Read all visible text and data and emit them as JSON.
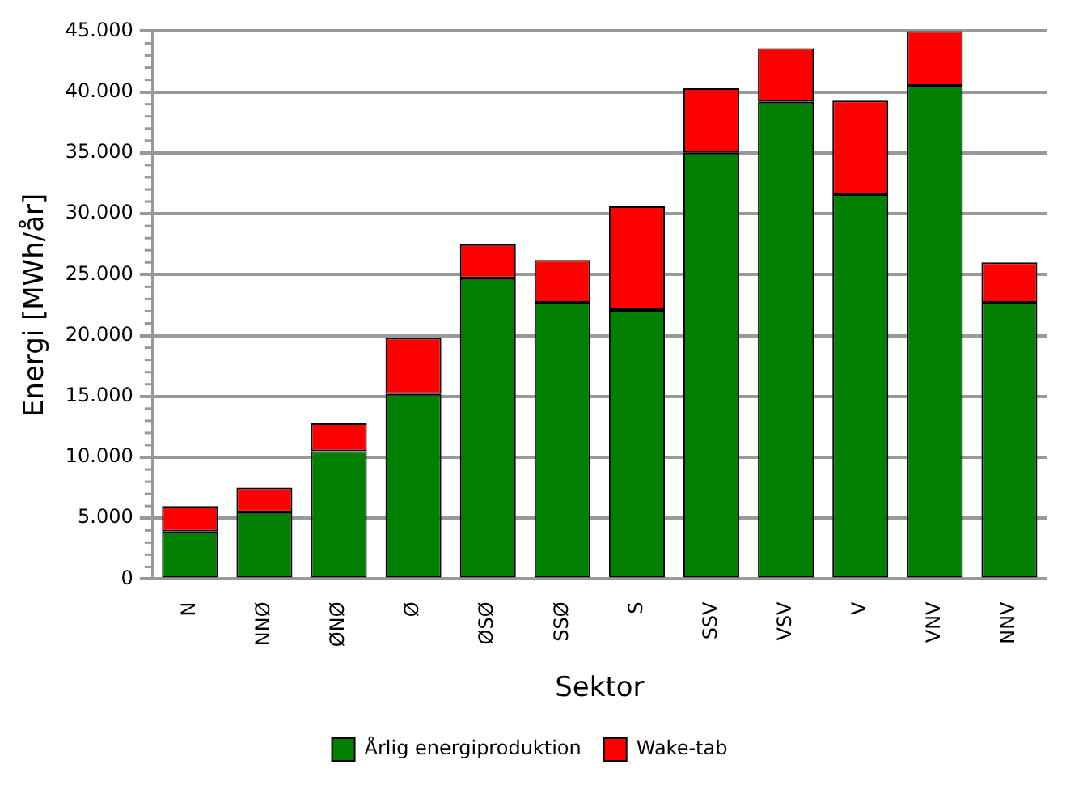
{
  "chart_data": {
    "type": "bar",
    "stacked": true,
    "xlabel": "Sektor",
    "ylabel": "Energi [MWh/år]",
    "categories": [
      "N",
      "NNØ",
      "ØNØ",
      "Ø",
      "ØSØ",
      "SSØ",
      "S",
      "SSV",
      "VSV",
      "V",
      "VNV",
      "NNV"
    ],
    "series": [
      {
        "name": "Årlig energiproduktion",
        "color": "#007f00",
        "values": [
          3900,
          5500,
          10500,
          15200,
          24700,
          22700,
          22100,
          35000,
          39200,
          31600,
          40500,
          22700
        ]
      },
      {
        "name": "Wake-tab",
        "color": "#ff0000",
        "values": [
          2100,
          2000,
          2300,
          4600,
          2800,
          3500,
          8500,
          5300,
          4400,
          7700,
          4500,
          3300
        ]
      }
    ],
    "ylim": [
      0,
      45000
    ],
    "yticks": [
      {
        "value": 0,
        "label": "0"
      },
      {
        "value": 1000,
        "label": null
      },
      {
        "value": 2000,
        "label": null
      },
      {
        "value": 3000,
        "label": null
      },
      {
        "value": 4000,
        "label": null
      },
      {
        "value": 5000,
        "label": "5.000"
      },
      {
        "value": 6000,
        "label": null
      },
      {
        "value": 7000,
        "label": null
      },
      {
        "value": 8000,
        "label": null
      },
      {
        "value": 9000,
        "label": null
      },
      {
        "value": 10000,
        "label": "10.000"
      },
      {
        "value": 11000,
        "label": null
      },
      {
        "value": 12000,
        "label": null
      },
      {
        "value": 13000,
        "label": null
      },
      {
        "value": 14000,
        "label": null
      },
      {
        "value": 15000,
        "label": "15.000"
      },
      {
        "value": 16000,
        "label": null
      },
      {
        "value": 17000,
        "label": null
      },
      {
        "value": 18000,
        "label": null
      },
      {
        "value": 19000,
        "label": null
      },
      {
        "value": 20000,
        "label": "20.000"
      },
      {
        "value": 21000,
        "label": null
      },
      {
        "value": 22000,
        "label": null
      },
      {
        "value": 23000,
        "label": null
      },
      {
        "value": 24000,
        "label": null
      },
      {
        "value": 25000,
        "label": "25.000"
      },
      {
        "value": 26000,
        "label": null
      },
      {
        "value": 27000,
        "label": null
      },
      {
        "value": 28000,
        "label": null
      },
      {
        "value": 29000,
        "label": null
      },
      {
        "value": 30000,
        "label": "30.000"
      },
      {
        "value": 31000,
        "label": null
      },
      {
        "value": 32000,
        "label": null
      },
      {
        "value": 33000,
        "label": null
      },
      {
        "value": 34000,
        "label": null
      },
      {
        "value": 35000,
        "label": "35.000"
      },
      {
        "value": 36000,
        "label": null
      },
      {
        "value": 37000,
        "label": null
      },
      {
        "value": 38000,
        "label": null
      },
      {
        "value": 39000,
        "label": null
      },
      {
        "value": 40000,
        "label": "40.000"
      },
      {
        "value": 41000,
        "label": null
      },
      {
        "value": 42000,
        "label": null
      },
      {
        "value": 43000,
        "label": null
      },
      {
        "value": 44000,
        "label": null
      },
      {
        "value": 45000,
        "label": "45.000"
      }
    ],
    "grid": "y",
    "legend": "bottom"
  }
}
